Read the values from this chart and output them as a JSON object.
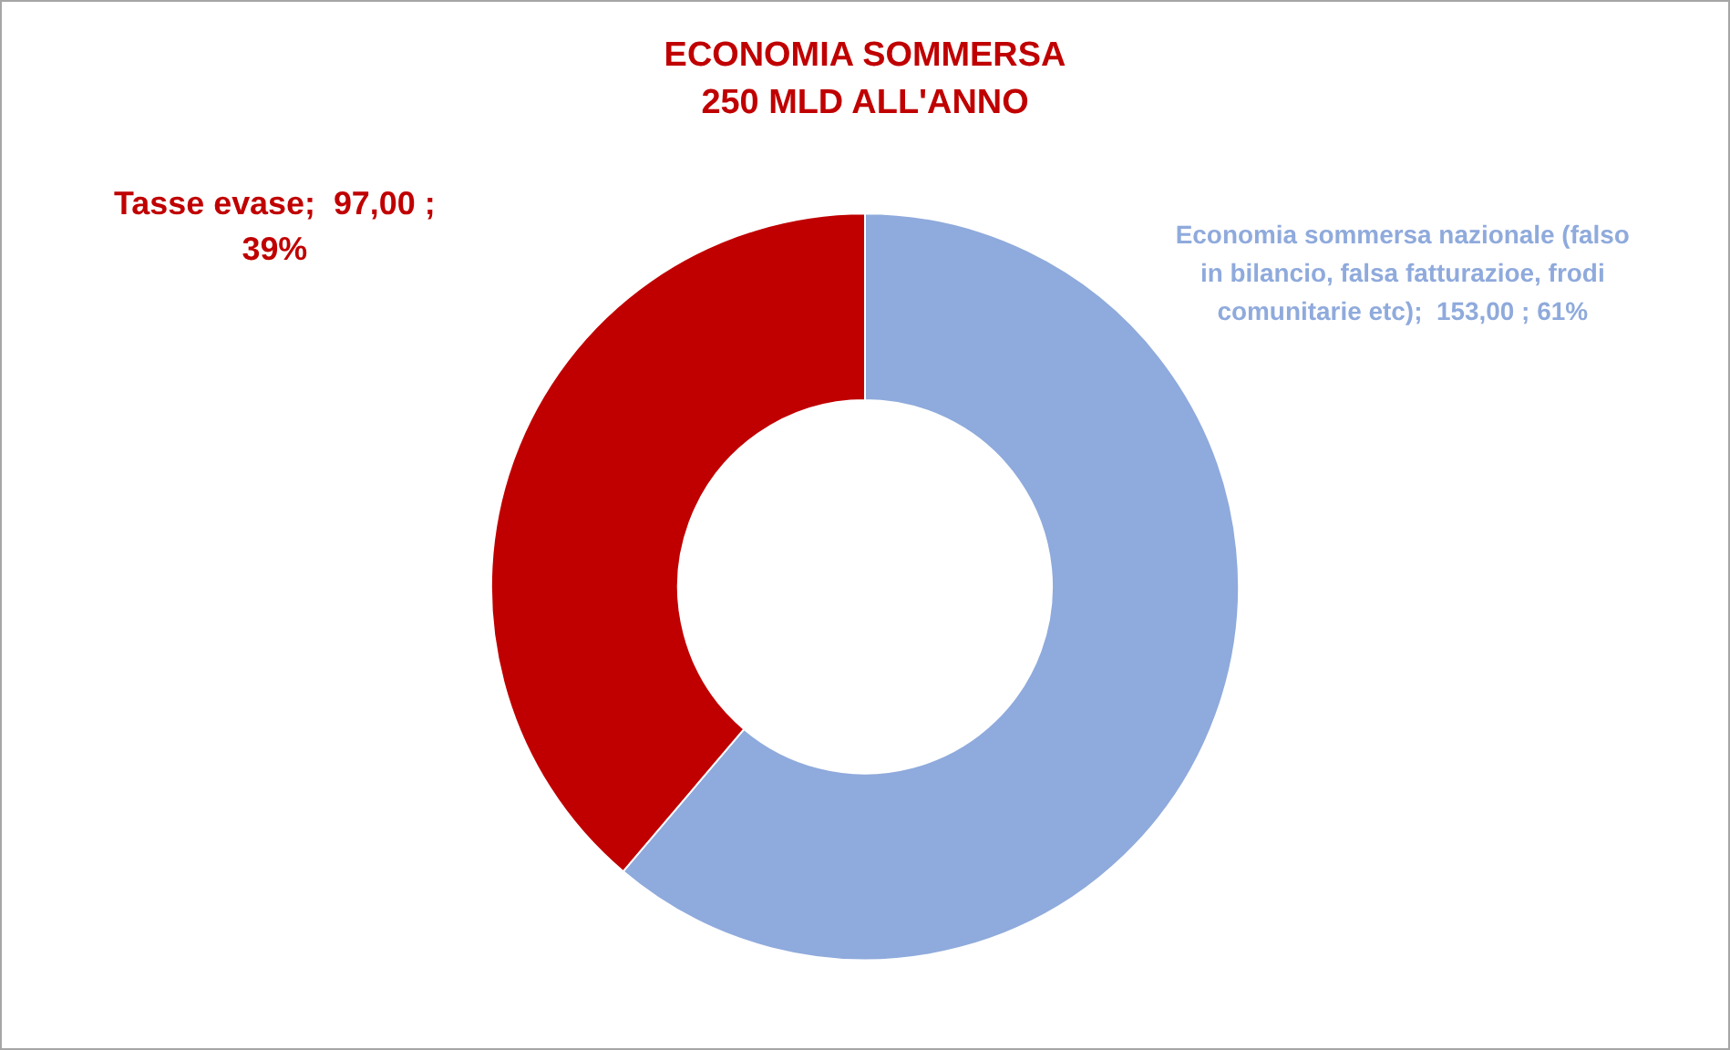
{
  "chart_data": {
    "type": "donut",
    "title": "ECONOMIA SOMMERSA\n250 MLD ALL'ANNO",
    "categories": [
      "Economia sommersa nazionale (falso in bilancio, falsa fatturazioe, frodi comunitarie etc)",
      "Tasse evase"
    ],
    "values": [
      153,
      97
    ],
    "colors": [
      "#8faadc",
      "#c00000"
    ],
    "value_labels": [
      "153,00 ; 61%",
      "97,00 ; 39%"
    ],
    "legend": false
  }
}
